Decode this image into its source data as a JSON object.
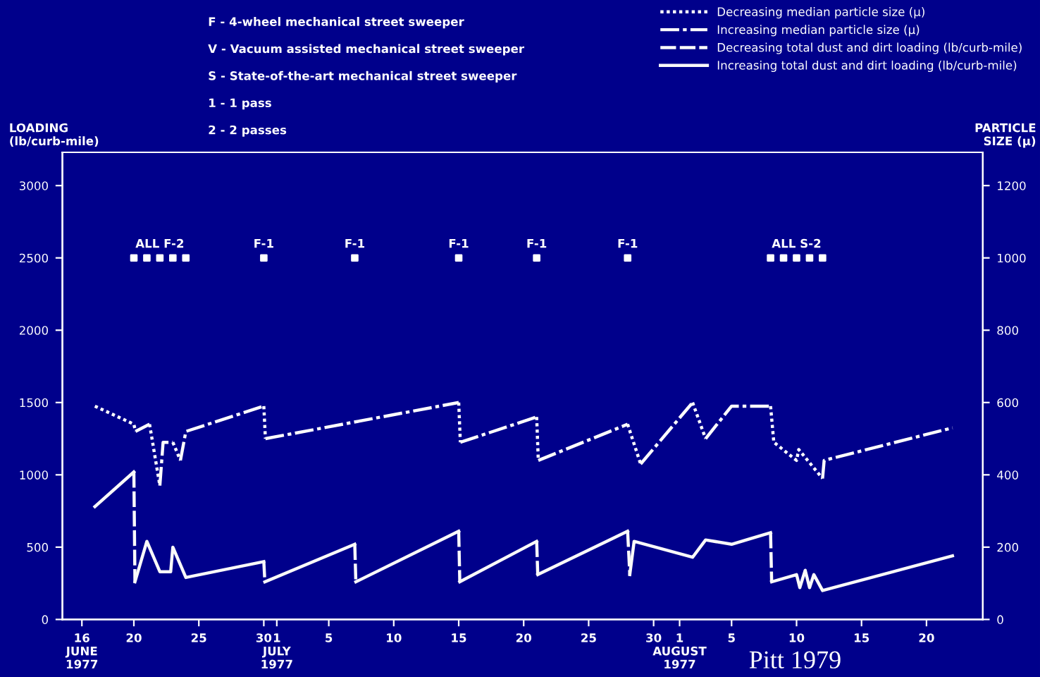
{
  "chart_data": {
    "type": "line",
    "xlabel": null,
    "ylabel": "LOADING\n(lb/curb-mile)",
    "y2label": "PARTICLE\nSIZE (µ)",
    "xlim": [
      "1977-06-14T12:00",
      "1977-08-24T08:00"
    ],
    "xticks": [
      {
        "value": "1977-06-16",
        "label": "16\nJUNE\n1977"
      },
      {
        "value": "1977-06-20",
        "label": "20"
      },
      {
        "value": "1977-06-25",
        "label": "25"
      },
      {
        "value": "1977-06-30",
        "label": "30"
      },
      {
        "value": "1977-07-01",
        "label": "1\nJULY\n1977"
      },
      {
        "value": "1977-07-05",
        "label": "5"
      },
      {
        "value": "1977-07-10",
        "label": "10"
      },
      {
        "value": "1977-07-15",
        "label": "15"
      },
      {
        "value": "1977-07-20",
        "label": "20"
      },
      {
        "value": "1977-07-25",
        "label": "25"
      },
      {
        "value": "1977-07-30",
        "label": "30"
      },
      {
        "value": "1977-08-01",
        "label": "1\nAUGUST\n1977"
      },
      {
        "value": "1977-08-05",
        "label": "5"
      },
      {
        "value": "1977-08-10",
        "label": "10"
      },
      {
        "value": "1977-08-15",
        "label": "15"
      },
      {
        "value": "1977-08-20",
        "label": "20"
      }
    ],
    "ylim": [
      0,
      3230
    ],
    "yticks": [
      0,
      500,
      1000,
      1500,
      2000,
      2500,
      3000
    ],
    "y2lim": [
      0,
      1292
    ],
    "y2ticks": [
      0,
      200,
      400,
      600,
      800,
      1000,
      1200
    ],
    "grid": false,
    "legend": "top right",
    "series": [
      {
        "name": "Decreasing median particle size (µ)",
        "color": "#ffffff",
        "axis": "y2",
        "line_style": "dotted",
        "marker": "none",
        "x": [
          "1977-06-17",
          "1977-06-20",
          "1977-06-20T03:00",
          "1977-06-20T16:00",
          "1977-06-21T05:00",
          "1977-06-22",
          "1977-06-22T18:00",
          "1977-06-23",
          "1977-06-23T14:00",
          "1977-06-27",
          "1977-06-30",
          "1977-06-30T03:00",
          "1977-07-08",
          "1977-07-15",
          "1977-07-15T03:00",
          "1977-07-18",
          "1977-07-21",
          "1977-07-21T03:00",
          "1977-07-25",
          "1977-07-28",
          "1977-07-29",
          "1977-07-31",
          "1977-08-02",
          "1977-08-03",
          "1977-08-06",
          "1977-08-08",
          "1977-08-08T06:00",
          "1977-08-10",
          "1977-08-10T04:00",
          "1977-08-12"
        ],
        "values": [
          590,
          540,
          520,
          null,
          540,
          370,
          null,
          490,
          440,
          null,
          590,
          500,
          null,
          600,
          490,
          null,
          560,
          440,
          null,
          540,
          430,
          null,
          600,
          500,
          null,
          590,
          490,
          440,
          470,
          390
        ]
      },
      {
        "name": "Increasing median particle size (µ)",
        "color": "#fdfdfd",
        "axis": "y2",
        "line_style": "dashdot",
        "marker": "none",
        "x": [
          "1977-06-20T03:00",
          "1977-06-21T05:00",
          "1977-06-21T14:00",
          "1977-06-22",
          "1977-06-22T06:00",
          "1977-06-23",
          "1977-06-23T07:00",
          "1977-06-23T14:00",
          "1977-06-24",
          "1977-06-30",
          "1977-06-30T01:00",
          "1977-06-30T03:00",
          "1977-07-15",
          "1977-07-15T01:00",
          "1977-07-15T03:00",
          "1977-07-21",
          "1977-07-21T01:00",
          "1977-07-21T03:00",
          "1977-07-28",
          "1977-07-28T12:00",
          "1977-07-29",
          "1977-08-02",
          "1977-08-02T12:00",
          "1977-08-03",
          "1977-08-05",
          "1977-08-08",
          "1977-08-10",
          "1977-08-12",
          "1977-08-12T03:00",
          "1977-08-22"
        ],
        "values": [
          520,
          540,
          null,
          370,
          490,
          490,
          null,
          440,
          520,
          590,
          null,
          500,
          600,
          null,
          490,
          560,
          null,
          440,
          540,
          null,
          430,
          600,
          null,
          500,
          590,
          590,
          null,
          390,
          440,
          530
        ]
      },
      {
        "name": "Decreasing total dust and dirt loading (lb/curb-mile)",
        "color": "#fbfbfb",
        "line_style": "dashed",
        "marker": "none",
        "x": [
          "1977-06-20",
          "1977-06-20T02:00",
          "1977-06-25",
          "1977-06-30",
          "1977-06-30T02:00",
          "1977-07-03",
          "1977-07-07",
          "1977-07-07T02:00",
          "1977-07-11",
          "1977-07-15",
          "1977-07-15T02:00",
          "1977-07-18",
          "1977-07-21",
          "1977-07-21T02:00",
          "1977-07-25",
          "1977-07-28",
          "1977-07-28T04:00",
          "1977-08-03",
          "1977-08-08",
          "1977-08-08T02:00"
        ],
        "values": [
          1020,
          260,
          null,
          400,
          260,
          null,
          520,
          260,
          null,
          610,
          260,
          null,
          540,
          310,
          null,
          610,
          310,
          null,
          600,
          260
        ]
      },
      {
        "name": "Increasing total dust and dirt loading (lb/curb-mile)",
        "color": "#f9f9f9",
        "line_style": "solid",
        "marker": "none",
        "x": [
          "1977-06-17",
          "1977-06-20",
          "1977-06-20T01:00",
          "1977-06-20T02:00",
          "1977-06-21",
          "1977-06-22",
          "1977-06-22T20:00",
          "1977-06-23",
          "1977-06-24",
          "1977-06-30",
          "1977-06-30T01:00",
          "1977-06-30T02:00",
          "1977-07-07",
          "1977-07-07T01:00",
          "1977-07-07T02:00",
          "1977-07-15",
          "1977-07-15T01:00",
          "1977-07-15T02:00",
          "1977-07-21",
          "1977-07-21T01:00",
          "1977-07-21T02:00",
          "1977-07-28",
          "1977-07-28T02:00",
          "1977-07-28T04:00",
          "1977-07-28T12:00",
          "1977-08-02",
          "1977-08-03",
          "1977-08-05",
          "1977-08-08",
          "1977-08-08T01:00",
          "1977-08-08T02:00",
          "1977-08-10",
          "1977-08-10T06:00",
          "1977-08-10T16:00",
          "1977-08-11",
          "1977-08-11T08:00",
          "1977-08-12",
          "1977-08-22"
        ],
        "values": [
          780,
          1020,
          null,
          260,
          540,
          330,
          330,
          500,
          290,
          400,
          null,
          260,
          520,
          null,
          260,
          610,
          null,
          260,
          540,
          null,
          310,
          610,
          null,
          310,
          540,
          430,
          550,
          520,
          600,
          null,
          260,
          310,
          220,
          340,
          220,
          310,
          200,
          440
        ]
      },
      {
        "type": "scatter",
        "color": "#ffffff",
        "marker": "square",
        "x": [
          "1977-06-20",
          "1977-06-21",
          "1977-06-22",
          "1977-06-23",
          "1977-06-24",
          "1977-06-30",
          "1977-07-07",
          "1977-07-15",
          "1977-07-21",
          "1977-07-28",
          "1977-08-08",
          "1977-08-09",
          "1977-08-10",
          "1977-08-11",
          "1977-08-12"
        ],
        "values": [
          2500,
          2500,
          2500,
          2500,
          2500,
          2500,
          2500,
          2500,
          2500,
          2500,
          2500,
          2500,
          2500,
          2500,
          2500
        ]
      }
    ],
    "annotations": [
      "F - 4-wheel mechanical street sweeper",
      "V - Vacuum assisted mechanical street sweeper",
      "S - State-of-the-art mechanical street sweeper",
      "1 - 1 pass",
      "2 - 2 passes",
      {
        "text": "ALL F-2",
        "x": "1977-06-22",
        "y": 2500
      },
      {
        "text": "F-1",
        "x": "1977-06-30",
        "y": 2500
      },
      {
        "text": "F-1",
        "x": "1977-07-07",
        "y": 2500
      },
      {
        "text": "F-1",
        "x": "1977-07-15",
        "y": 2500
      },
      {
        "text": "F-1",
        "x": "1977-07-21",
        "y": 2500
      },
      {
        "text": "F-1",
        "x": "1977-07-28",
        "y": 2500
      },
      {
        "text": "ALL S-2",
        "x": "1977-08-10",
        "y": 2500
      },
      "Pitt 1979"
    ]
  }
}
